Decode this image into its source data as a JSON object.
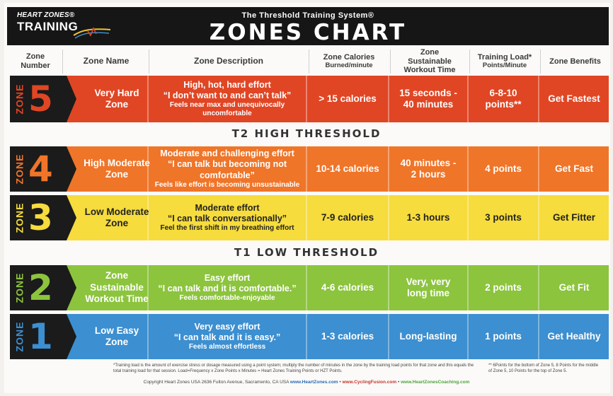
{
  "brand": {
    "line1": "HEART ZONES®",
    "line2": "TRAINING"
  },
  "subtitle": "The Threshold Training System®",
  "title": "ZONES CHART",
  "columns": {
    "zone_number": "Zone Number",
    "zone_name": "Zone Name",
    "zone_description": "Zone Description",
    "zone_calories": "Zone Calories",
    "zone_calories_sub": "Burned/minute",
    "sustainable": "Zone Sustainable Workout Time",
    "training_load": "Training Load*",
    "training_load_sub": "Points/Minute",
    "benefits": "Zone Benefits"
  },
  "thresholds": {
    "t2": "T2 HIGH THRESHOLD",
    "t1": "T1 LOW THRESHOLD"
  },
  "zones": [
    {
      "word": "ZONE",
      "number": "5",
      "name": "Very Hard Zone",
      "desc_main": "High, hot, hard effort",
      "desc_quote": "“I don’t want to and can’t talk”",
      "desc_note": "Feels near max and unequivocally uncomfortable",
      "calories": "> 15 calories",
      "time": "15 seconds - 40 minutes",
      "load": "6-8-10 points**",
      "benefit": "Get Fastest",
      "color": "#e04624",
      "text_color": "#ffffff",
      "num_color": "#e04624"
    },
    {
      "word": "ZONE",
      "number": "4",
      "name": "High Moderate Zone",
      "desc_main": "Moderate and challenging effort",
      "desc_quote": "“I can talk but becoming not comfortable”",
      "desc_note": "Feels like effort is becoming unsustainable",
      "calories": "10-14 calories",
      "time": "40 minutes - 2 hours",
      "load": "4 points",
      "benefit": "Get Fast",
      "color": "#ef7529",
      "text_color": "#ffffff",
      "num_color": "#ef7529"
    },
    {
      "word": "ZONE",
      "number": "3",
      "name": "Low Moderate Zone",
      "desc_main": "Moderate effort",
      "desc_quote": "“I can talk conversationally”",
      "desc_note": "Feel the first shift in my breathing effort",
      "calories": "7-9 calories",
      "time": "1-3 hours",
      "load": "3 points",
      "benefit": "Get Fitter",
      "color": "#f6dc3c",
      "text_color": "#222222",
      "num_color": "#f6dc3c"
    },
    {
      "word": "ZONE",
      "number": "2",
      "name": "Zone Sustainable Workout Time",
      "desc_main": "Easy effort",
      "desc_quote": "“I can talk and it is comfortable.”",
      "desc_note": "Feels comfortable-enjoyable",
      "calories": "4-6 calories",
      "time": "Very, very long time",
      "load": "2 points",
      "benefit": "Get Fit",
      "color": "#8cc43e",
      "text_color": "#ffffff",
      "num_color": "#8cc43e"
    },
    {
      "word": "ZONE",
      "number": "1",
      "name": "Low Easy Zone",
      "desc_main": "Very easy effort",
      "desc_quote": "“I can talk and it is easy.”",
      "desc_note": "Feels almost effortless",
      "calories": "1-3 calories",
      "time": "Long-lasting",
      "load": "1 points",
      "benefit": "Get Healthy",
      "color": "#3c8fd0",
      "text_color": "#ffffff",
      "num_color": "#3c8fd0"
    }
  ],
  "footnote_left": "*Training load is the amount of exercise stress or dosage measured using a point system; multiply the number of minutes in the zone by the training load points for that zone and this equals the total training load for that session. Load=Frequency x Zone Points x Minutes = Heart Zones Training Points or HZT Points.",
  "footnote_right": "** 6Points for the bottom of Zone 5, 8 Points for the middle of Zone 5, 10 Points for the top of Zone 5.",
  "copyright": {
    "text": "Copyright Heart Zones USA 2636 Fulton Avenue, Sacramento, CA USA",
    "site1": "www.HeartZones.com",
    "site2": "www.CyclingFusion.com",
    "site3": "www.HeartZonesCoaching.com",
    "sep": "•"
  }
}
